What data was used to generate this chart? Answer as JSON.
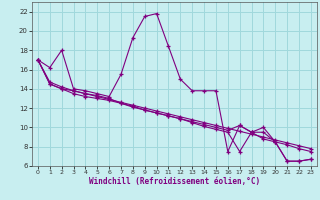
{
  "background_color": "#c8eef0",
  "grid_color": "#a0d8dc",
  "line_color": "#800080",
  "xlabel": "Windchill (Refroidissement éolien,°C)",
  "xlim": [
    -0.5,
    23.5
  ],
  "ylim": [
    6,
    23
  ],
  "yticks": [
    6,
    8,
    10,
    12,
    14,
    16,
    18,
    20,
    22
  ],
  "xticks": [
    0,
    1,
    2,
    3,
    4,
    5,
    6,
    7,
    8,
    9,
    10,
    11,
    12,
    13,
    14,
    15,
    16,
    17,
    18,
    19,
    20,
    21,
    22,
    23
  ],
  "series": [
    [
      17.0,
      16.2,
      18.0,
      14.0,
      13.8,
      13.5,
      13.2,
      15.5,
      19.3,
      21.5,
      21.8,
      18.4,
      15.0,
      13.8,
      13.8,
      13.8,
      7.5,
      10.2,
      9.5,
      10.0,
      8.5,
      6.5,
      6.5,
      6.7
    ],
    [
      17.0,
      14.5,
      14.0,
      13.8,
      13.5,
      13.3,
      13.0,
      12.5,
      12.2,
      11.8,
      11.5,
      11.2,
      10.9,
      10.6,
      10.3,
      10.0,
      9.7,
      10.2,
      9.5,
      8.8,
      8.5,
      8.2,
      7.8,
      7.5
    ],
    [
      17.0,
      14.5,
      14.0,
      13.5,
      13.2,
      13.0,
      12.8,
      12.5,
      12.1,
      11.8,
      11.5,
      11.2,
      10.9,
      10.5,
      10.1,
      9.8,
      9.5,
      7.5,
      9.5,
      9.5,
      8.5,
      6.5,
      6.5,
      6.7
    ],
    [
      17.0,
      14.7,
      14.2,
      13.8,
      13.5,
      13.2,
      12.9,
      12.6,
      12.3,
      12.0,
      11.7,
      11.4,
      11.1,
      10.8,
      10.5,
      10.2,
      9.9,
      9.6,
      9.3,
      9.0,
      8.7,
      8.4,
      8.1,
      7.8
    ]
  ]
}
